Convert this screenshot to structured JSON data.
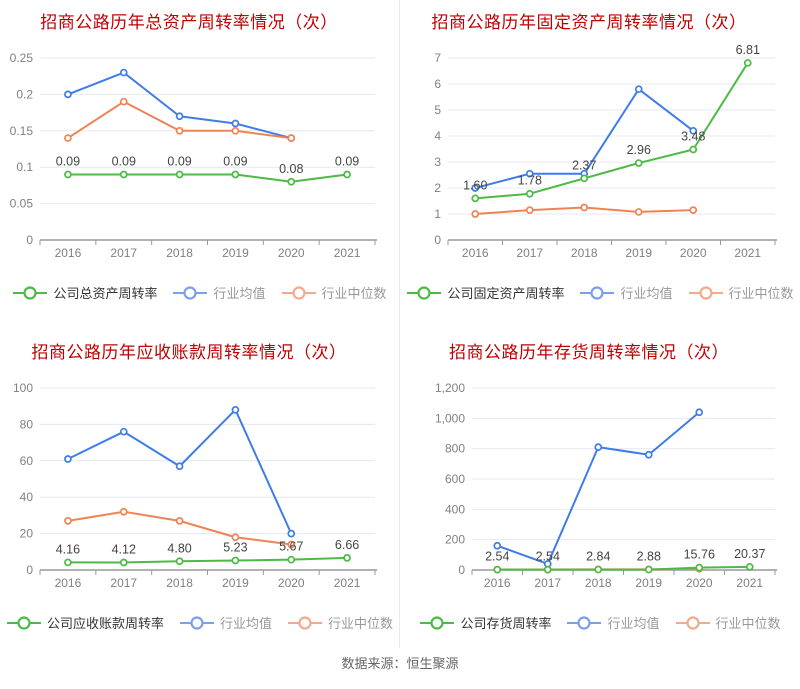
{
  "footer": {
    "text": "数据来源：恒生聚源"
  },
  "colors": {
    "title": "#c00000",
    "green": "#4cba44",
    "blue": "#3e7ce8",
    "orange": "#ef8354",
    "legend_green": "#4cba44",
    "legend_blue": "#7b9fe8",
    "legend_orange": "#f4a98c",
    "grid": "#e4e8f0",
    "axis": "#999999",
    "tick": "#808080",
    "data_label": "#444444"
  },
  "chart_data": [
    {
      "type": "line",
      "title": "招商公路历年总资产周转率情况（次）",
      "x": [
        "2016",
        "2017",
        "2018",
        "2019",
        "2020",
        "2021"
      ],
      "ylim": [
        0,
        0.25
      ],
      "grid": true,
      "legend_position": "bottom",
      "yticks": [
        {
          "v": 0,
          "t": "0"
        },
        {
          "v": 0.05,
          "t": "0.05"
        },
        {
          "v": 0.1,
          "t": "0.1"
        },
        {
          "v": 0.15,
          "t": "0.15"
        },
        {
          "v": 0.2,
          "t": "0.2"
        },
        {
          "v": 0.25,
          "t": "0.25"
        }
      ],
      "plot_left": 40,
      "series": [
        {
          "name": "公司总资产周转率",
          "color_key": "green",
          "values": [
            0.09,
            0.09,
            0.09,
            0.09,
            0.08,
            0.09
          ],
          "labels": [
            "0.09",
            "0.09",
            "0.09",
            "0.09",
            "0.08",
            "0.09"
          ]
        },
        {
          "name": "行业均值",
          "color_key": "blue",
          "values": [
            0.2,
            0.23,
            0.17,
            0.16,
            0.14
          ]
        },
        {
          "name": "行业中位数",
          "color_key": "orange",
          "values": [
            0.14,
            0.19,
            0.15,
            0.15,
            0.14
          ]
        }
      ]
    },
    {
      "type": "line",
      "title": "招商公路历年固定资产周转率情况（次）",
      "x": [
        "2016",
        "2017",
        "2018",
        "2019",
        "2020",
        "2021"
      ],
      "ylim": [
        0,
        7
      ],
      "grid": true,
      "legend_position": "bottom",
      "yticks": [
        {
          "v": 0,
          "t": "0"
        },
        {
          "v": 1,
          "t": "1"
        },
        {
          "v": 2,
          "t": "2"
        },
        {
          "v": 3,
          "t": "3"
        },
        {
          "v": 4,
          "t": "4"
        },
        {
          "v": 5,
          "t": "5"
        },
        {
          "v": 6,
          "t": "6"
        },
        {
          "v": 7,
          "t": "7"
        }
      ],
      "plot_left": 48,
      "series": [
        {
          "name": "公司固定资产周转率",
          "color_key": "green",
          "values": [
            1.6,
            1.78,
            2.37,
            2.96,
            3.48,
            6.81
          ],
          "labels": [
            "1.60",
            "1.78",
            "2.37",
            "2.96",
            "3.48",
            "6.81"
          ]
        },
        {
          "name": "行业均值",
          "color_key": "blue",
          "values": [
            2.0,
            2.55,
            2.55,
            5.8,
            4.2
          ]
        },
        {
          "name": "行业中位数",
          "color_key": "orange",
          "values": [
            1.0,
            1.15,
            1.25,
            1.08,
            1.15
          ]
        }
      ]
    },
    {
      "type": "line",
      "title": "招商公路历年应收账款周转率情况（次）",
      "x": [
        "2016",
        "2017",
        "2018",
        "2019",
        "2020",
        "2021"
      ],
      "ylim": [
        0,
        100
      ],
      "grid": true,
      "legend_position": "bottom",
      "yticks": [
        {
          "v": 0,
          "t": "0"
        },
        {
          "v": 20,
          "t": "20"
        },
        {
          "v": 40,
          "t": "40"
        },
        {
          "v": 60,
          "t": "60"
        },
        {
          "v": 80,
          "t": "80"
        },
        {
          "v": 100,
          "t": "100"
        }
      ],
      "plot_left": 40,
      "series": [
        {
          "name": "公司应收账款周转率",
          "color_key": "green",
          "values": [
            4.16,
            4.12,
            4.8,
            5.23,
            5.67,
            6.66
          ],
          "labels": [
            "4.16",
            "4.12",
            "4.80",
            "5.23",
            "5.67",
            "6.66"
          ]
        },
        {
          "name": "行业均值",
          "color_key": "blue",
          "values": [
            61,
            76,
            57,
            88,
            20
          ]
        },
        {
          "name": "行业中位数",
          "color_key": "orange",
          "values": [
            27,
            32,
            27,
            18,
            14
          ]
        }
      ]
    },
    {
      "type": "line",
      "title": "招商公路历年存货周转率情况（次）",
      "x": [
        "2016",
        "2017",
        "2018",
        "2019",
        "2020",
        "2021"
      ],
      "ylim": [
        0,
        1200
      ],
      "grid": true,
      "legend_position": "bottom",
      "yticks": [
        {
          "v": 0,
          "t": "0"
        },
        {
          "v": 200,
          "t": "200"
        },
        {
          "v": 400,
          "t": "400"
        },
        {
          "v": 600,
          "t": "600"
        },
        {
          "v": 800,
          "t": "800"
        },
        {
          "v": 1000,
          "t": "1,000"
        },
        {
          "v": 1200,
          "t": "1,200"
        }
      ],
      "plot_left": 72,
      "series": [
        {
          "name": "公司存货周转率",
          "color_key": "green",
          "values": [
            2.54,
            2.54,
            2.84,
            2.88,
            15.76,
            20.37
          ],
          "labels": [
            "2.54",
            "2.54",
            "2.84",
            "2.88",
            "15.76",
            "20.37"
          ]
        },
        {
          "name": "行业均值",
          "color_key": "blue",
          "values": [
            160,
            40,
            810,
            760,
            1040
          ]
        },
        {
          "name": "行业中位数",
          "color_key": "orange",
          "values": [
            3,
            3,
            4,
            4,
            8
          ]
        }
      ]
    }
  ]
}
